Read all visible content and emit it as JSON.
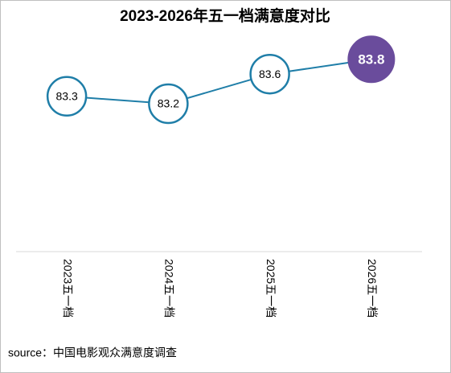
{
  "chart_data": {
    "type": "line",
    "title": "2023-2026年五一档满意度对比",
    "categories": [
      "2023五一档",
      "2024五一档",
      "2025五一档",
      "2026五一档"
    ],
    "series": [
      {
        "name": "满意度",
        "color": "#1f7ea8",
        "values": [
          83.3,
          83.2,
          83.6,
          83.8
        ]
      }
    ],
    "highlight": "2026五一档",
    "highlight_color": "#6a4c9c",
    "ylim": [
      81.2,
      84.2
    ],
    "source": "source：中国电影观众满意度调查"
  }
}
